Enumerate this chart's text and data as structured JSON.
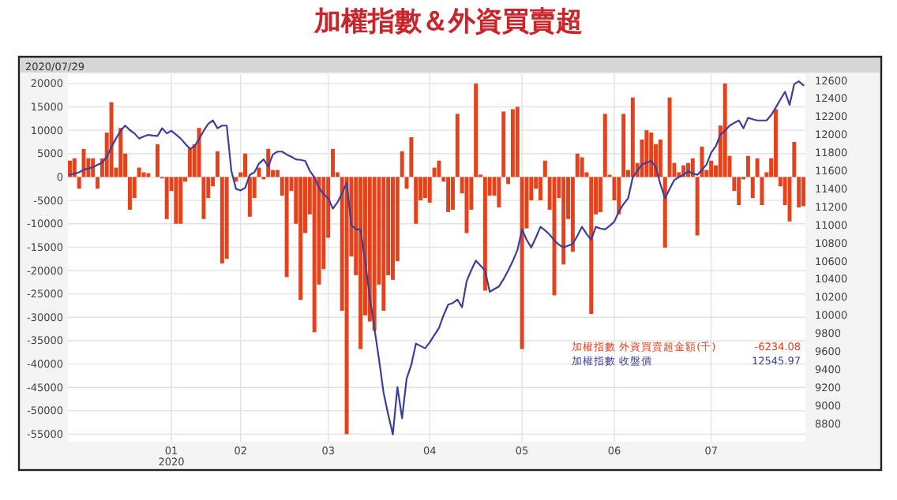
{
  "chart_data": {
    "type": "bar",
    "title": "加權指數＆外資買賣超",
    "annotations": [
      "2020/07/29",
      "-6234.08",
      "12545.97"
    ],
    "categories": [
      null,
      null,
      null,
      null,
      null,
      null,
      null,
      null,
      null,
      null,
      null,
      null,
      null,
      null,
      null,
      null,
      null,
      null,
      null,
      null,
      null,
      null,
      "01\n2020",
      null,
      null,
      null,
      null,
      null,
      null,
      null,
      null,
      null,
      null,
      null,
      null,
      null,
      null,
      "02",
      null,
      null,
      null,
      null,
      null,
      null,
      null,
      null,
      null,
      null,
      null,
      null,
      null,
      null,
      null,
      null,
      null,
      null,
      "03",
      null,
      null,
      null,
      null,
      null,
      null,
      null,
      null,
      null,
      null,
      null,
      null,
      null,
      null,
      null,
      null,
      null,
      null,
      null,
      null,
      null,
      "04",
      null,
      null,
      null,
      null,
      null,
      null,
      null,
      null,
      null,
      null,
      null,
      null,
      null,
      null,
      null,
      null,
      null,
      null,
      null,
      "05",
      null,
      null,
      null,
      null,
      null,
      null,
      null,
      null,
      null,
      null,
      null,
      null,
      null,
      null,
      null,
      null,
      null,
      null,
      null,
      "06",
      null,
      null,
      null,
      null,
      null,
      null,
      null,
      null,
      null,
      null,
      null,
      null,
      null,
      null,
      null,
      null,
      null,
      null,
      null,
      null,
      "07",
      null,
      null,
      null,
      null,
      null,
      null,
      null,
      null,
      null,
      null,
      null,
      null,
      null,
      null,
      null,
      null,
      null,
      null,
      null,
      null
    ],
    "series": [
      {
        "name": "加權指數 外資買賣超金額(千)",
        "color": "#e5411b",
        "values": [
          3500,
          4000,
          -2500,
          6000,
          4000,
          4000,
          -2500,
          4000,
          9500,
          16000,
          2000,
          10500,
          5000,
          -7000,
          -4500,
          2000,
          1000,
          800,
          0,
          7000,
          -300,
          -9000,
          -3000,
          -10000,
          -10000,
          -1000,
          6000,
          7000,
          10500,
          -9000,
          -4500,
          -2000,
          5500,
          -18500,
          -17500,
          null,
          -1000,
          1000,
          5000,
          -8500,
          -4500,
          2000,
          -500,
          6000,
          1500,
          1500,
          -4000,
          -21400,
          -3000,
          -10000,
          -26300,
          -12000,
          -8000,
          -33200,
          -23000,
          -19700,
          -13000,
          6000,
          1000,
          -28600,
          -55000,
          -17000,
          -21000,
          -36800,
          -29600,
          -30900,
          -32900,
          -23000,
          -28600,
          -21000,
          -22000,
          -18000,
          5500,
          -2500,
          8500,
          -10000,
          -5000,
          -4500,
          -5500,
          2000,
          3500,
          -1000,
          -7500,
          -7000,
          13500,
          -3500,
          -12000,
          -7000,
          20000,
          500,
          -24300,
          -4000,
          -4000,
          -6500,
          14000,
          -1500,
          14500,
          15000,
          -36800,
          -11000,
          -5000,
          -2500,
          -5000,
          3500,
          -7000,
          -25300,
          -4500,
          -18700,
          -9000,
          -16000,
          5000,
          4200,
          1000,
          -29300,
          -8000,
          -7500,
          13500,
          500,
          -5000,
          -8000,
          13500,
          1500,
          17000,
          3000,
          8000,
          10000,
          9500,
          7000,
          8000,
          -15100,
          17000,
          3000,
          1000,
          2500,
          3000,
          4000,
          -12500,
          6500,
          1500,
          3500,
          2500,
          11000,
          20000,
          4500,
          -3000,
          -6000,
          -500,
          4500,
          -4500,
          4000,
          -6000,
          1000,
          4000,
          14500,
          -2000,
          -6000,
          -9500,
          7500,
          -6500,
          -6234
        ]
      },
      {
        "name": "加權指數 收盤價",
        "color": "#3b3f99",
        "type": "line",
        "axis": "y2",
        "values": [
          11555,
          11570,
          11583,
          11612,
          11625,
          11640,
          11665,
          11690,
          11755,
          11860,
          11957,
          12043,
          12100,
          12050,
          12014,
          11957,
          11980,
          11997,
          11990,
          11985,
          12071,
          12014,
          12043,
          12000,
          11957,
          11900,
          11842,
          11870,
          11950,
          12043,
          12120,
          12157,
          12071,
          12100,
          12100,
          11600,
          11400,
          11382,
          11411,
          11555,
          11583,
          11680,
          11726,
          11650,
          11780,
          11812,
          11812,
          11780,
          11755,
          11726,
          11720,
          11709,
          11600,
          11526,
          11411,
          11340,
          11296,
          11180,
          11250,
          11350,
          11468,
          11000,
          10951,
          10951,
          10600,
          10200,
          9859,
          9514,
          9140,
          8900,
          8680,
          9204,
          8859,
          9300,
          9450,
          9686,
          9660,
          9634,
          9700,
          9780,
          9859,
          10000,
          10117,
          10135,
          10174,
          10088,
          10376,
          10500,
          10605,
          10550,
          10496,
          10260,
          10290,
          10319,
          10400,
          10496,
          10600,
          10721,
          10950,
          10836,
          10750,
          10860,
          10979,
          10940,
          10893,
          10830,
          10780,
          10750,
          10770,
          10790,
          10880,
          10979,
          10900,
          10836,
          10979,
          10960,
          10950,
          10990,
          11036,
          11150,
          11230,
          11295,
          11526,
          11600,
          11669,
          11690,
          11709,
          11640,
          11450,
          11295,
          11400,
          11497,
          11530,
          11553,
          11594,
          11570,
          11555,
          11610,
          11669,
          11800,
          11871,
          12000,
          12043,
          12100,
          12130,
          12157,
          12071,
          12186,
          12170,
          12157,
          12157,
          12157,
          12215,
          12300,
          12388,
          12474,
          12330,
          12560,
          12590,
          12546
        ]
      }
    ],
    "ylim": [
      -56600,
      22000
    ],
    "yticks": [
      20000,
      15000,
      10000,
      5000,
      0,
      -5000,
      -10000,
      -15000,
      -20000,
      -25000,
      -30000,
      -35000,
      -40000,
      -45000,
      -50000,
      -55000
    ],
    "y2lim": [
      8600,
      12670
    ],
    "y2ticks": [
      12600,
      12400,
      12200,
      12000,
      11800,
      11600,
      11400,
      11200,
      11000,
      10800,
      10600,
      10400,
      10200,
      10000,
      9800,
      9600,
      9400,
      9200,
      9000,
      8800
    ],
    "grid": true,
    "legend": "bottom right"
  }
}
